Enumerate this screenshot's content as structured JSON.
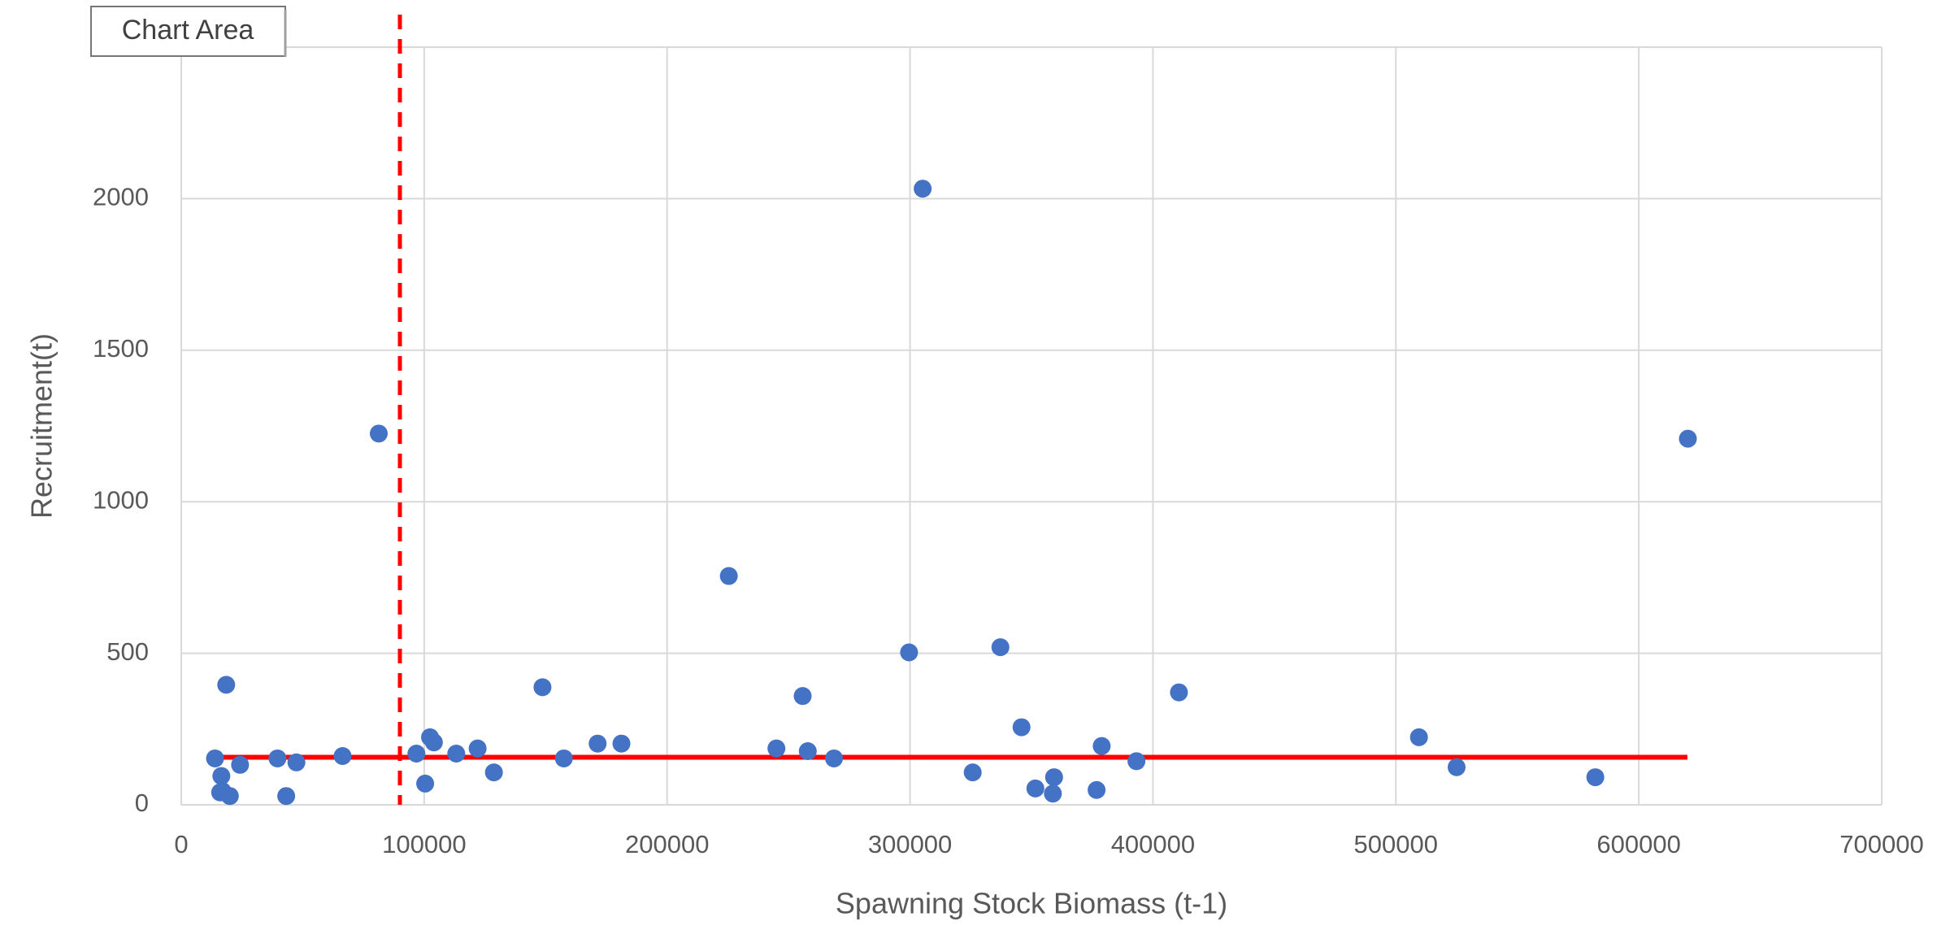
{
  "chart_data": {
    "type": "scatter",
    "x_label": "Spawning Stock Biomass (t-1)",
    "y_label": "Recruitment(t)",
    "tooltip": "Chart Area",
    "color": "#4472c4",
    "grid": true,
    "xlim": [
      0,
      700000
    ],
    "xticks": [
      0,
      100000,
      200000,
      300000,
      400000,
      500000,
      600000,
      700000
    ],
    "ylim": [
      0,
      2500
    ],
    "yticks": [
      0,
      500,
      1000,
      1500,
      2000,
      2500
    ],
    "x": [
      13900,
      16500,
      16000,
      18500,
      20000,
      17000,
      24200,
      39600,
      43200,
      47400,
      66400,
      81300,
      96800,
      100400,
      102400,
      104000,
      113200,
      122000,
      128700,
      148700,
      157500,
      171400,
      181200,
      225400,
      245000,
      255800,
      257900,
      268700,
      299600,
      305200,
      325800,
      337200,
      345900,
      351600,
      358800,
      359300,
      376800,
      378900,
      393200,
      410700,
      509500,
      525000,
      582100,
      620200
    ],
    "values": [
      153,
      95,
      41,
      396,
      29,
      45,
      132,
      153,
      29,
      140,
      161,
      1225,
      169,
      70,
      223,
      206,
      169,
      186,
      107,
      388,
      153,
      202,
      202,
      755,
      186,
      359,
      177,
      153,
      503,
      2033,
      107,
      520,
      256,
      54,
      37,
      91,
      49,
      194,
      144,
      371,
      223,
      124,
      91,
      1208
    ],
    "reference_hline": {
      "value": 157,
      "x_range": [
        15000,
        620000
      ],
      "color": "#ff0000"
    },
    "reference_vline": {
      "value": 90000,
      "color": "#ff0000"
    }
  }
}
